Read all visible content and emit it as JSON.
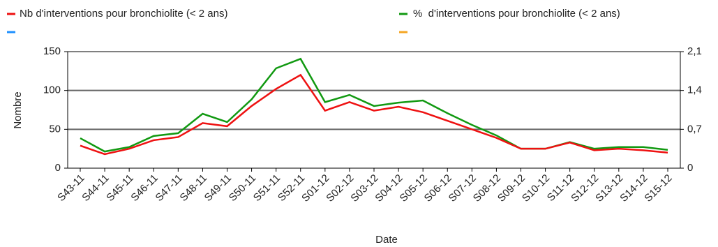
{
  "chart_data": {
    "type": "line",
    "x_label": "Date",
    "y_label": "Nombre",
    "categories": [
      "S43-11",
      "S44-11",
      "S45-11",
      "S46-11",
      "S47-11",
      "S48-11",
      "S49-11",
      "S50-11",
      "S51-11",
      "S52-11",
      "S01-12",
      "S02-12",
      "S03-12",
      "S04-12",
      "S05-12",
      "S06-12",
      "S07-12",
      "S08-12",
      "S09-12",
      "S10-12",
      "S11-12",
      "S12-12",
      "S13-12",
      "S14-12",
      "S15-12"
    ],
    "series": [
      {
        "name": "Nb d'interventions pour bronchiolite (< 2 ans)",
        "color": "#ee1111",
        "values": [
          29,
          18,
          25,
          36,
          40,
          58,
          54,
          80,
          102,
          120,
          74,
          85,
          74,
          79,
          72,
          61,
          50,
          39,
          25,
          25,
          33,
          23,
          25,
          23,
          20
        ]
      },
      {
        "name": "%  d'interventions pour bronchiolite (< 2 ans)",
        "color": "#119911",
        "axis": "y2",
        "values": [
          0.54,
          0.3,
          0.38,
          0.58,
          0.63,
          0.98,
          0.83,
          1.24,
          1.8,
          1.97,
          1.19,
          1.32,
          1.12,
          1.18,
          1.22,
          0.99,
          0.78,
          0.59,
          0.35,
          0.35,
          0.47,
          0.35,
          0.38,
          0.38,
          0.33
        ]
      }
    ],
    "ylim": [
      0,
      150
    ],
    "yticks": [
      0,
      50,
      100,
      150
    ],
    "y2lim": [
      0,
      2.1
    ],
    "y2ticks": [
      0,
      {
        "value": 0.7,
        "label": "0,7"
      },
      {
        "value": 1.4,
        "label": "1,4"
      },
      {
        "value": 2.1,
        "label": "2,1"
      }
    ],
    "grid": true
  }
}
